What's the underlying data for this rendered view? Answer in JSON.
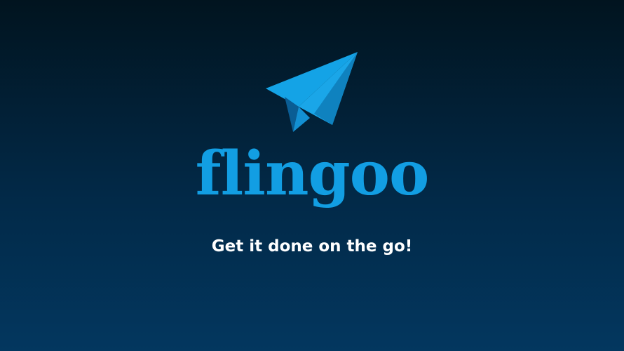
{
  "app": {
    "logo_icon": "paper-plane-icon",
    "brand_name": "flingoo",
    "tagline": "Get it done on the go!"
  },
  "colors": {
    "background_top": "#01141f",
    "background_bottom": "#03375f",
    "brand": "#129ee3",
    "tagline": "#ffffff"
  }
}
